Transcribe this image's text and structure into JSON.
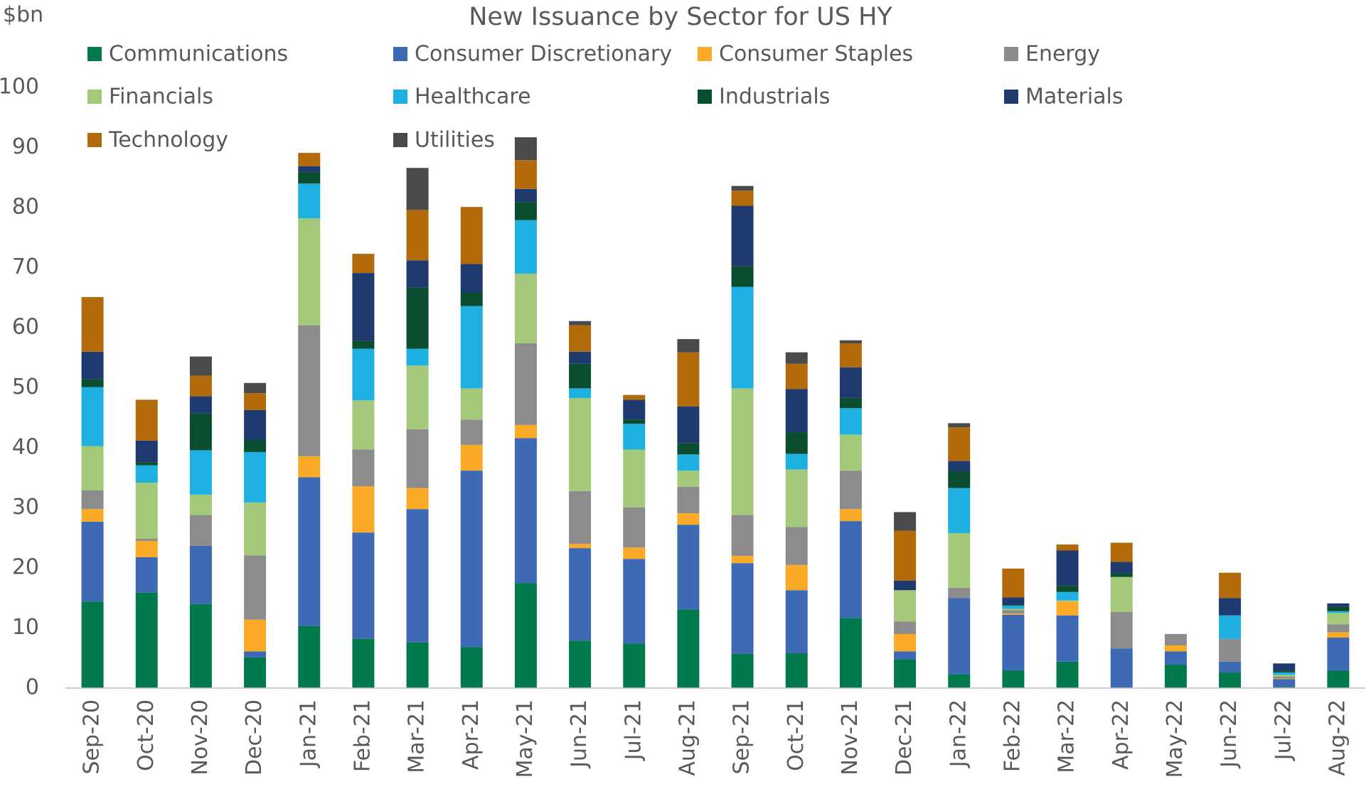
{
  "chart_data": {
    "type": "stacked_bar",
    "title": "New Issuance by Sector for US HY",
    "y_label": "$bn",
    "categories": [
      "Sep-20",
      "Oct-20",
      "Nov-20",
      "Dec-20",
      "Jan-21",
      "Feb-21",
      "Mar-21",
      "Apr-21",
      "May-21",
      "Jun-21",
      "Jul-21",
      "Aug-21",
      "Sep-21",
      "Oct-21",
      "Nov-21",
      "Dec-21",
      "Jan-22",
      "Feb-22",
      "Mar-22",
      "Apr-22",
      "May-22",
      "Jun-22",
      "Jul-22",
      "Aug-22"
    ],
    "ylim": [
      0,
      100
    ],
    "yticks": [
      0,
      10,
      20,
      30,
      40,
      50,
      60,
      70,
      80,
      90,
      100
    ],
    "grid": false,
    "series": [
      {
        "name": "Communications",
        "color": "#007a4d",
        "values": [
          14.4,
          15.9,
          14.0,
          5.1,
          10.3,
          8.2,
          7.6,
          6.8,
          17.5,
          7.9,
          7.4,
          13.1,
          5.7,
          5.8,
          11.6,
          4.8,
          2.3,
          2.9,
          4.4,
          0,
          3.9,
          2.6,
          0.2,
          2.9
        ]
      },
      {
        "name": "Consumer Discretionary",
        "color": "#3e69b5",
        "values": [
          13.3,
          5.9,
          9.7,
          1.0,
          24.8,
          17.7,
          22.2,
          29.4,
          24.1,
          15.4,
          14.1,
          14.1,
          15.1,
          10.5,
          16.2,
          1.3,
          12.7,
          9.3,
          7.7,
          6.6,
          2.2,
          1.8,
          1.3,
          5.5
        ]
      },
      {
        "name": "Consumer Staples",
        "color": "#fbaa28",
        "values": [
          2.1,
          2.7,
          0,
          5.3,
          3.5,
          7.7,
          3.5,
          4.3,
          2.2,
          0.7,
          1.9,
          1.9,
          1.2,
          4.2,
          2.0,
          2.9,
          0,
          0.2,
          2.3,
          0,
          1.0,
          0,
          0.1,
          0.9
        ]
      },
      {
        "name": "Energy",
        "color": "#8c8c8c",
        "values": [
          3.1,
          0.4,
          5.1,
          10.7,
          21.8,
          6.1,
          9.8,
          4.2,
          13.6,
          8.8,
          6.7,
          4.4,
          6.8,
          6.3,
          6.4,
          2.1,
          1.7,
          0.6,
          0,
          6.1,
          1.9,
          3.8,
          0.3,
          1.3
        ]
      },
      {
        "name": "Financials",
        "color": "#a4c97a",
        "values": [
          7.4,
          9.3,
          3.4,
          8.8,
          17.8,
          8.2,
          10.6,
          5.2,
          11.6,
          15.5,
          9.6,
          2.7,
          21.1,
          9.6,
          6.0,
          5.2,
          9.1,
          0.2,
          0.2,
          5.8,
          0,
          0,
          0.3,
          1.9
        ]
      },
      {
        "name": "Healthcare",
        "color": "#1eb0e0",
        "values": [
          9.8,
          2.9,
          7.4,
          8.4,
          5.8,
          8.6,
          2.8,
          13.7,
          8.9,
          1.6,
          4.3,
          2.7,
          16.9,
          2.6,
          4.4,
          0,
          7.5,
          0.5,
          1.4,
          0,
          0,
          3.9,
          0.4,
          0.3
        ]
      },
      {
        "name": "Industrials",
        "color": "#0a4d2e",
        "values": [
          1.3,
          0.5,
          6.1,
          2.0,
          1.9,
          1.3,
          10.2,
          2.2,
          3.0,
          4.1,
          0.7,
          1.9,
          3.4,
          3.6,
          1.7,
          0,
          2.8,
          0.1,
          1.0,
          0.6,
          0,
          0,
          0.2,
          0.7
        ]
      },
      {
        "name": "Materials",
        "color": "#1f3a6e",
        "values": [
          4.6,
          3.6,
          2.9,
          5.0,
          1.0,
          11.3,
          4.5,
          4.8,
          2.2,
          2.0,
          3.3,
          6.1,
          10.1,
          7.2,
          5.1,
          1.6,
          1.7,
          1.3,
          5.9,
          1.9,
          0,
          2.9,
          1.3,
          0.6
        ]
      },
      {
        "name": "Technology",
        "color": "#b26a0a",
        "values": [
          9.1,
          6.8,
          3.4,
          2.8,
          2.2,
          3.2,
          8.4,
          9.5,
          4.8,
          4.4,
          0.8,
          9.0,
          2.5,
          4.2,
          4.0,
          8.3,
          5.6,
          4.8,
          1.0,
          3.2,
          0,
          4.2,
          0,
          0
        ]
      },
      {
        "name": "Utilities",
        "color": "#4a4a4a",
        "values": [
          0,
          0,
          3.2,
          1.7,
          0,
          0,
          7.0,
          0,
          3.8,
          0.7,
          0,
          2.2,
          0.8,
          1.9,
          0.5,
          3.1,
          0.7,
          0,
          0,
          0,
          0,
          0,
          0,
          0
        ]
      }
    ]
  }
}
